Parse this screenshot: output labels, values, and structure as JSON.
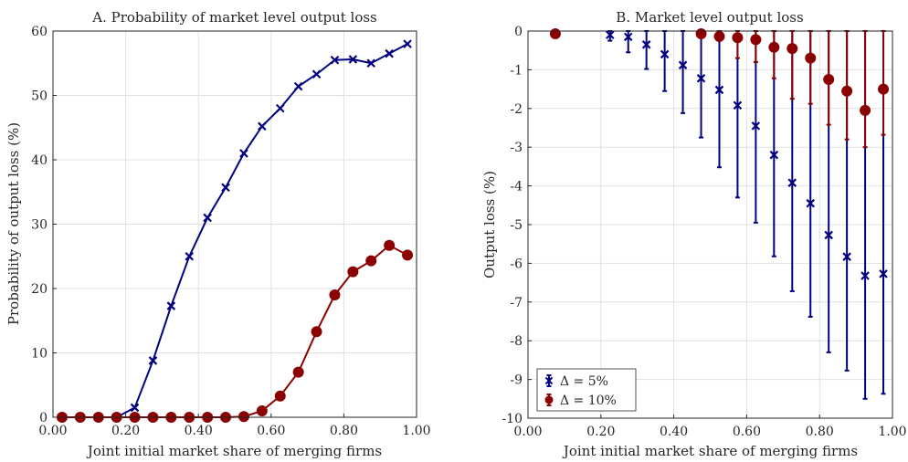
{
  "chart_data": [
    {
      "type": "line",
      "title": "A. Probability of market level output loss",
      "xlabel": "Joint initial market share of merging firms",
      "ylabel": "Probability of output loss (%)",
      "xlim": [
        0,
        1
      ],
      "ylim": [
        0,
        60
      ],
      "xticks": [
        0,
        0.2,
        0.4,
        0.6,
        0.8,
        1.0
      ],
      "xtick_labels": [
        "0.00",
        "0.20",
        "0.40",
        "0.60",
        "0.80",
        "1.00"
      ],
      "yticks": [
        0,
        10,
        20,
        30,
        40,
        50,
        60
      ],
      "ytick_labels": [
        "0",
        "10",
        "20",
        "30",
        "40",
        "50",
        "60"
      ],
      "grid": true,
      "x": [
        0.025,
        0.075,
        0.125,
        0.175,
        0.225,
        0.275,
        0.325,
        0.375,
        0.425,
        0.475,
        0.525,
        0.575,
        0.625,
        0.675,
        0.725,
        0.775,
        0.825,
        0.875,
        0.925,
        0.975
      ],
      "series": [
        {
          "color": "#000080",
          "marker": "x",
          "values": [
            0,
            0,
            0,
            0,
            1.5,
            8.8,
            17.3,
            25.0,
            31.0,
            35.7,
            41.0,
            45.2,
            48.0,
            51.4,
            53.3,
            55.5,
            55.6,
            55.0,
            56.5,
            58.0
          ]
        },
        {
          "color": "#8B0000",
          "marker": "o",
          "values": [
            0,
            0,
            0,
            0,
            0,
            0,
            0,
            0,
            0,
            0,
            0.1,
            1.0,
            3.3,
            7.0,
            13.3,
            19.0,
            22.6,
            24.3,
            26.7,
            25.2
          ]
        }
      ]
    },
    {
      "type": "errorbar",
      "title": "B. Market level output loss",
      "xlabel": "Joint initial market share of merging firms",
      "ylabel": "Output loss (%)",
      "xlim": [
        0,
        1
      ],
      "ylim": [
        -10,
        0
      ],
      "xticks": [
        0,
        0.2,
        0.4,
        0.6,
        0.8,
        1.0
      ],
      "xtick_labels": [
        "0.00",
        "0.20",
        "0.40",
        "0.60",
        "0.80",
        "1.00"
      ],
      "yticks": [
        0,
        -1,
        -2,
        -3,
        -4,
        -5,
        -6,
        -7,
        -8,
        -9,
        -10
      ],
      "ytick_labels": [
        "0",
        "-1",
        "-2",
        "-3",
        "-4",
        "-5",
        "-6",
        "-7",
        "-8",
        "-9",
        "-10"
      ],
      "grid": true,
      "legend_position": "bottom-left",
      "series": [
        {
          "name": "Δ = 5%",
          "color": "#000080",
          "marker": "x",
          "x": [
            0.225,
            0.275,
            0.325,
            0.375,
            0.425,
            0.475,
            0.525,
            0.575,
            0.625,
            0.675,
            0.725,
            0.775,
            0.825,
            0.875,
            0.925,
            0.975
          ],
          "values": [
            -0.1,
            -0.15,
            -0.35,
            -0.6,
            -0.88,
            -1.22,
            -1.52,
            -1.92,
            -2.45,
            -3.2,
            -3.92,
            -4.45,
            -5.27,
            -5.83,
            -6.32,
            -6.27
          ],
          "lower": [
            -0.25,
            -0.55,
            -0.98,
            -1.55,
            -2.12,
            -2.75,
            -3.52,
            -4.3,
            -4.95,
            -5.82,
            -6.72,
            -7.38,
            -8.3,
            -8.77,
            -9.5,
            -9.37
          ],
          "upper": [
            0,
            0,
            0,
            0,
            0,
            0,
            0,
            0,
            0,
            0,
            0,
            0,
            0,
            0,
            0,
            0
          ]
        },
        {
          "name": "Δ = 10%",
          "color": "#8B0000",
          "marker": "o",
          "x": [
            0.075,
            0.475,
            0.525,
            0.575,
            0.625,
            0.675,
            0.725,
            0.775,
            0.825,
            0.875,
            0.925,
            0.975
          ],
          "values": [
            -0.07,
            -0.07,
            -0.14,
            -0.17,
            -0.22,
            -0.42,
            -0.45,
            -0.7,
            -1.25,
            -1.55,
            -2.05,
            -1.5
          ],
          "lower": [
            -0.07,
            -0.1,
            -0.25,
            -0.7,
            -0.8,
            -1.22,
            -1.75,
            -1.88,
            -2.42,
            -2.8,
            -3.0,
            -2.68
          ],
          "upper": [
            0,
            0,
            0,
            0,
            0,
            0,
            0,
            0,
            0,
            0,
            0,
            0
          ]
        }
      ]
    }
  ]
}
